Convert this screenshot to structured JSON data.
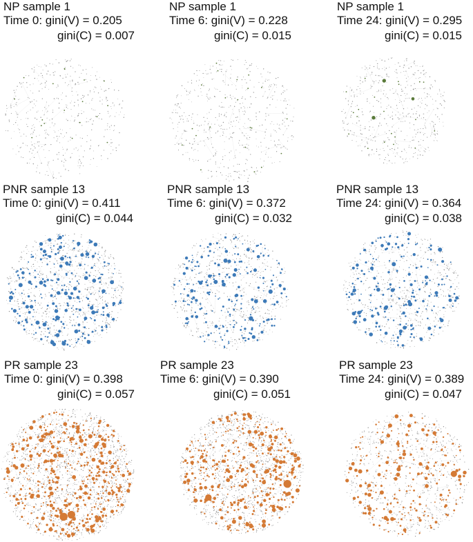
{
  "figure": {
    "colors": {
      "NP": "#5a7a3a",
      "PNR": "#3d7ab8",
      "PR": "#d47a35",
      "edge": "#bdbdbd"
    },
    "panels": [
      {
        "id": "np-t0",
        "group": "NP",
        "sample": "NP sample 1",
        "time": "Time 0: gini(V) = 0.205",
        "giniC": "gini(C) = 0.007",
        "icon": "network-graph-icon"
      },
      {
        "id": "np-t6",
        "group": "NP",
        "sample": "NP sample 1",
        "time": "Time 6: gini(V) = 0.228",
        "giniC": "gini(C) = 0.015",
        "icon": "network-graph-icon"
      },
      {
        "id": "np-t24",
        "group": "NP",
        "sample": "NP sample 1",
        "time": "Time 24: gini(V) = 0.295",
        "giniC": "gini(C) = 0.015",
        "icon": "network-graph-icon"
      },
      {
        "id": "pnr-t0",
        "group": "PNR",
        "sample": "PNR sample 13",
        "time": "Time 0: gini(V) = 0.411",
        "giniC": "gini(C) = 0.044",
        "icon": "network-graph-icon"
      },
      {
        "id": "pnr-t6",
        "group": "PNR",
        "sample": "PNR sample 13",
        "time": "Time 6: gini(V) = 0.372",
        "giniC": "gini(C) = 0.032",
        "icon": "network-graph-icon"
      },
      {
        "id": "pnr-t24",
        "group": "PNR",
        "sample": "PNR sample 13",
        "time": "Time 24: gini(V) = 0.364",
        "giniC": "gini(C) = 0.038",
        "icon": "network-graph-icon"
      },
      {
        "id": "pr-t0",
        "group": "PR",
        "sample": "PR sample 23",
        "time": "Time 0: gini(V) = 0.398",
        "giniC": "gini(C) = 0.057",
        "icon": "network-graph-icon"
      },
      {
        "id": "pr-t6",
        "group": "PR",
        "sample": "PR sample 23",
        "time": "Time 6: gini(V) = 0.390",
        "giniC": "gini(C) = 0.051",
        "icon": "network-graph-icon"
      },
      {
        "id": "pr-t24",
        "group": "PR",
        "sample": "PR sample 23",
        "time": "Time 24: gini(V) = 0.389",
        "giniC": "gini(C) = 0.047",
        "icon": "network-graph-icon"
      }
    ]
  }
}
